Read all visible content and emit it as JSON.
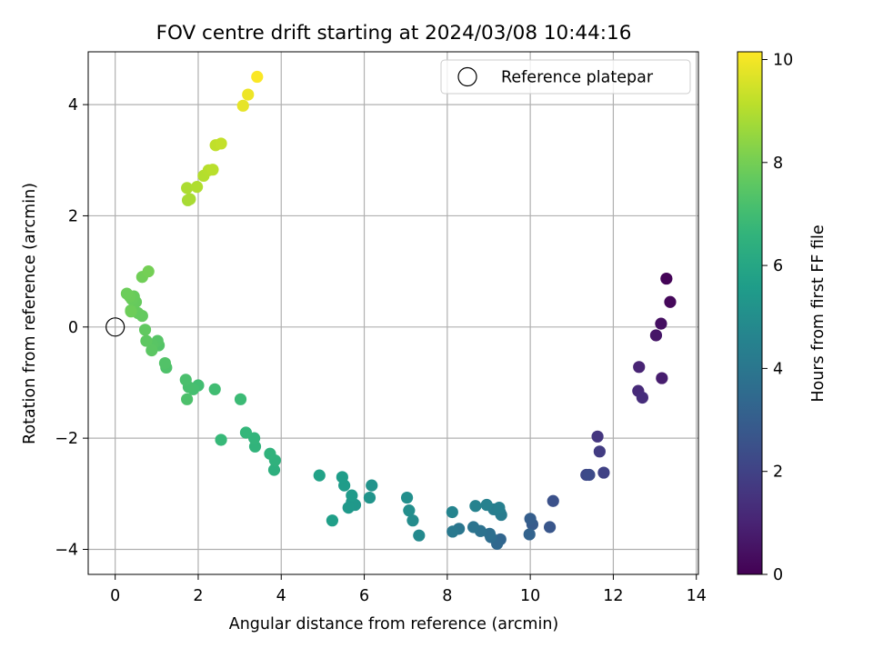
{
  "chart_data": {
    "type": "scatter",
    "title": "FOV centre drift starting at 2024/03/08 10:44:16",
    "xlabel": "Angular distance from reference (arcmin)",
    "ylabel": "Rotation from reference (arcmin)",
    "xlim": [
      -0.65,
      14.05
    ],
    "ylim": [
      -4.45,
      4.95
    ],
    "xticks": [
      0,
      2,
      4,
      6,
      8,
      10,
      12,
      14
    ],
    "yticks": [
      -4,
      -2,
      0,
      2,
      4
    ],
    "grid": true,
    "legend": {
      "position": "top-right",
      "entries": [
        "Reference platepar"
      ]
    },
    "reference": {
      "x": 0,
      "y": 0
    },
    "colorbar": {
      "label": "Hours from first FF file",
      "range": [
        0,
        10.15
      ],
      "ticks": [
        0,
        2,
        4,
        6,
        8,
        10
      ],
      "colormap": "viridis"
    },
    "points": [
      {
        "x": 13.28,
        "y": 0.87,
        "c": 0.1
      },
      {
        "x": 13.37,
        "y": 0.45,
        "c": 0.2
      },
      {
        "x": 13.15,
        "y": 0.06,
        "c": 0.4
      },
      {
        "x": 13.03,
        "y": -0.15,
        "c": 0.6
      },
      {
        "x": 13.17,
        "y": -0.92,
        "c": 0.8
      },
      {
        "x": 12.62,
        "y": -0.72,
        "c": 1.0
      },
      {
        "x": 12.6,
        "y": -1.15,
        "c": 1.2
      },
      {
        "x": 12.7,
        "y": -1.27,
        "c": 1.3
      },
      {
        "x": 11.62,
        "y": -1.97,
        "c": 1.6
      },
      {
        "x": 11.67,
        "y": -2.24,
        "c": 1.8
      },
      {
        "x": 11.77,
        "y": -2.62,
        "c": 2.0
      },
      {
        "x": 11.35,
        "y": -2.66,
        "c": 2.2
      },
      {
        "x": 11.42,
        "y": -2.66,
        "c": 2.3
      },
      {
        "x": 10.55,
        "y": -3.13,
        "c": 2.5
      },
      {
        "x": 10.47,
        "y": -3.6,
        "c": 2.7
      },
      {
        "x": 10.05,
        "y": -3.55,
        "c": 2.9
      },
      {
        "x": 10.0,
        "y": -3.45,
        "c": 3.0
      },
      {
        "x": 9.98,
        "y": -3.73,
        "c": 3.2
      },
      {
        "x": 9.28,
        "y": -3.82,
        "c": 3.3
      },
      {
        "x": 9.2,
        "y": -3.9,
        "c": 3.4
      },
      {
        "x": 9.05,
        "y": -3.78,
        "c": 3.6
      },
      {
        "x": 9.02,
        "y": -3.72,
        "c": 3.7
      },
      {
        "x": 8.8,
        "y": -3.67,
        "c": 3.8
      },
      {
        "x": 8.63,
        "y": -3.6,
        "c": 3.9
      },
      {
        "x": 8.28,
        "y": -3.63,
        "c": 4.0
      },
      {
        "x": 8.13,
        "y": -3.68,
        "c": 4.1
      },
      {
        "x": 9.27,
        "y": -3.33,
        "c": 4.2
      },
      {
        "x": 9.3,
        "y": -3.38,
        "c": 4.25
      },
      {
        "x": 9.12,
        "y": -3.28,
        "c": 4.3
      },
      {
        "x": 9.25,
        "y": -3.25,
        "c": 4.4
      },
      {
        "x": 8.95,
        "y": -3.2,
        "c": 4.45
      },
      {
        "x": 8.68,
        "y": -3.22,
        "c": 4.5
      },
      {
        "x": 8.12,
        "y": -3.33,
        "c": 4.6
      },
      {
        "x": 7.32,
        "y": -3.75,
        "c": 4.8
      },
      {
        "x": 7.17,
        "y": -3.48,
        "c": 4.9
      },
      {
        "x": 7.08,
        "y": -3.3,
        "c": 5.0
      },
      {
        "x": 7.03,
        "y": -3.07,
        "c": 5.05
      },
      {
        "x": 6.18,
        "y": -2.85,
        "c": 5.2
      },
      {
        "x": 6.13,
        "y": -3.07,
        "c": 5.25
      },
      {
        "x": 5.78,
        "y": -3.2,
        "c": 5.35
      },
      {
        "x": 5.7,
        "y": -3.15,
        "c": 5.4
      },
      {
        "x": 5.62,
        "y": -3.25,
        "c": 5.45
      },
      {
        "x": 5.7,
        "y": -3.03,
        "c": 5.5
      },
      {
        "x": 5.52,
        "y": -2.85,
        "c": 5.55
      },
      {
        "x": 5.47,
        "y": -2.7,
        "c": 5.6
      },
      {
        "x": 5.23,
        "y": -3.48,
        "c": 5.7
      },
      {
        "x": 4.92,
        "y": -2.67,
        "c": 5.8
      },
      {
        "x": 3.83,
        "y": -2.57,
        "c": 6.4
      },
      {
        "x": 3.85,
        "y": -2.4,
        "c": 6.5
      },
      {
        "x": 3.73,
        "y": -2.28,
        "c": 6.55
      },
      {
        "x": 3.37,
        "y": -2.15,
        "c": 6.6
      },
      {
        "x": 3.35,
        "y": -2.0,
        "c": 6.65
      },
      {
        "x": 3.15,
        "y": -1.9,
        "c": 6.7
      },
      {
        "x": 2.55,
        "y": -2.03,
        "c": 6.8
      },
      {
        "x": 3.02,
        "y": -1.3,
        "c": 6.9
      },
      {
        "x": 2.4,
        "y": -1.12,
        "c": 7.0
      },
      {
        "x": 2.0,
        "y": -1.05,
        "c": 7.05
      },
      {
        "x": 1.88,
        "y": -1.12,
        "c": 7.1
      },
      {
        "x": 1.77,
        "y": -1.08,
        "c": 7.15
      },
      {
        "x": 1.7,
        "y": -0.95,
        "c": 7.2
      },
      {
        "x": 1.73,
        "y": -1.3,
        "c": 7.25
      },
      {
        "x": 1.23,
        "y": -0.73,
        "c": 7.3
      },
      {
        "x": 1.2,
        "y": -0.65,
        "c": 7.35
      },
      {
        "x": 1.05,
        "y": -0.33,
        "c": 7.4
      },
      {
        "x": 1.02,
        "y": -0.25,
        "c": 7.45
      },
      {
        "x": 0.9,
        "y": -0.32,
        "c": 7.5
      },
      {
        "x": 0.88,
        "y": -0.42,
        "c": 7.55
      },
      {
        "x": 0.75,
        "y": -0.25,
        "c": 7.6
      },
      {
        "x": 0.72,
        "y": -0.05,
        "c": 7.65
      },
      {
        "x": 0.65,
        "y": 0.2,
        "c": 7.7
      },
      {
        "x": 0.55,
        "y": 0.25,
        "c": 7.72
      },
      {
        "x": 0.5,
        "y": 0.45,
        "c": 7.75
      },
      {
        "x": 0.45,
        "y": 0.55,
        "c": 7.78
      },
      {
        "x": 0.4,
        "y": 0.5,
        "c": 7.8
      },
      {
        "x": 0.38,
        "y": 0.3,
        "c": 7.82
      },
      {
        "x": 0.35,
        "y": 0.55,
        "c": 7.85
      },
      {
        "x": 0.28,
        "y": 0.6,
        "c": 7.87
      },
      {
        "x": 0.38,
        "y": 0.28,
        "c": 7.9
      },
      {
        "x": 0.65,
        "y": 0.9,
        "c": 7.95
      },
      {
        "x": 0.8,
        "y": 1.0,
        "c": 8.0
      },
      {
        "x": 1.75,
        "y": 2.28,
        "c": 8.8
      },
      {
        "x": 1.8,
        "y": 2.3,
        "c": 8.85
      },
      {
        "x": 1.73,
        "y": 2.5,
        "c": 8.9
      },
      {
        "x": 1.97,
        "y": 2.52,
        "c": 8.95
      },
      {
        "x": 2.13,
        "y": 2.72,
        "c": 9.0
      },
      {
        "x": 2.25,
        "y": 2.82,
        "c": 9.05
      },
      {
        "x": 2.35,
        "y": 2.83,
        "c": 9.1
      },
      {
        "x": 2.42,
        "y": 3.27,
        "c": 9.2
      },
      {
        "x": 2.55,
        "y": 3.3,
        "c": 9.25
      },
      {
        "x": 3.08,
        "y": 3.98,
        "c": 9.8
      },
      {
        "x": 3.2,
        "y": 4.18,
        "c": 9.9
      },
      {
        "x": 3.42,
        "y": 4.5,
        "c": 10.1
      }
    ]
  }
}
